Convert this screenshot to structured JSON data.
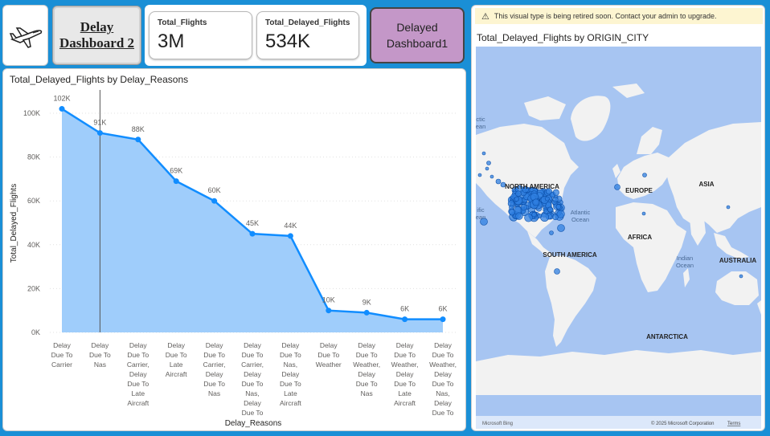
{
  "nav": {
    "dashboard2_label": "Delay\nDashboard 2",
    "dashboard1_label": "Delayed\nDashboard1"
  },
  "kpis": {
    "total_flights": {
      "label": "Total_Flights",
      "value": "3M"
    },
    "total_delayed": {
      "label": "Total_Delayed_Flights",
      "value": "534K"
    }
  },
  "chart_data": {
    "type": "area",
    "title": "Total_Delayed_Flights by Delay_Reasons",
    "xlabel": "Delay_Reasons",
    "ylabel": "Total_Delayed_Flights",
    "ylim": [
      0,
      100000
    ],
    "yticks": [
      "0K",
      "20K",
      "40K",
      "60K",
      "80K",
      "100K"
    ],
    "categories": [
      "Delay Due To Carrier",
      "Delay Due To Nas",
      "Delay Due To Carrier, Delay Due To Late Aircraft",
      "Delay Due To Late Aircraft",
      "Delay Due To Carrier, Delay Due To Nas",
      "Delay Due To Carrier, Delay Due To Nas, Delay Due To ...",
      "Delay Due To Nas, Delay Due To Late Aircraft",
      "Delay Due To Weather",
      "Delay Due To Weather, Delay Due To Nas",
      "Delay Due To Weather, Delay Due To Late Aircraft",
      "Delay Due To Weather, Delay Due To Nas, Delay Due To ..."
    ],
    "values": [
      102000,
      91000,
      88000,
      69000,
      60000,
      45000,
      44000,
      10000,
      9000,
      6000,
      6000
    ],
    "data_labels": [
      "102K",
      "91K",
      "88K",
      "69K",
      "60K",
      "45K",
      "44K",
      "10K",
      "9K",
      "6K",
      "6K"
    ],
    "series_color": "#118dff",
    "fill_color": "#9fcdfb",
    "grid": true
  },
  "map": {
    "warning": "This visual type is being retired soon. Contact your admin to upgrade.",
    "title": "Total_Delayed_Flights by ORIGIN_CITY",
    "labels": [
      "NORTH AMERICA",
      "EUROPE",
      "ASIA",
      "AFRICA",
      "SOUTH AMERICA",
      "AUSTRALIA",
      "ANTARCTICA",
      "Atlantic Ocean",
      "Indian Ocean"
    ],
    "edge_labels": [
      "ctic",
      "ean",
      "ific",
      "ean"
    ],
    "attribution_left": "Microsoft Bing",
    "attribution_right": "© 2025 Microsoft Corporation",
    "terms": "Terms",
    "ocean_color": "#a7c5f2",
    "land_color": "#f2f2f2",
    "bubble_color": "#2f7fe0"
  }
}
